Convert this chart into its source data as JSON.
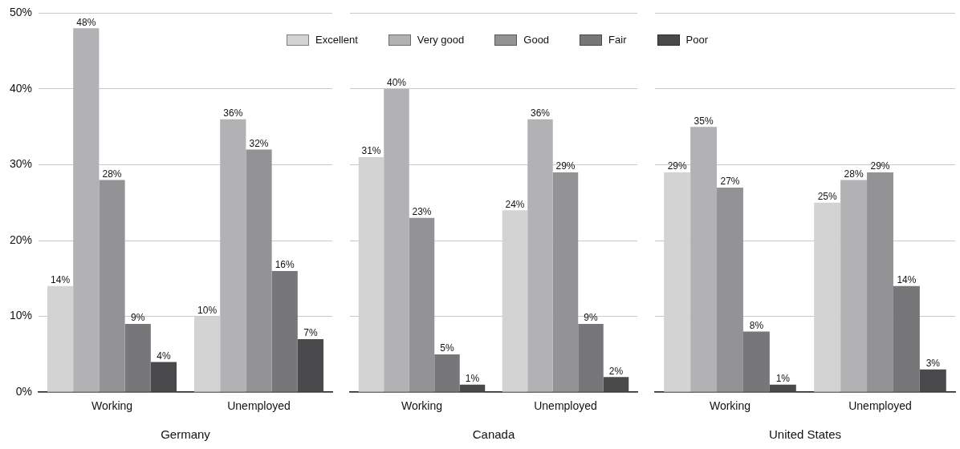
{
  "chart_data": [
    {
      "type": "bar",
      "xlabel": "Germany",
      "categories": [
        "Working",
        "Unemployed"
      ],
      "ylim": [
        0,
        50
      ],
      "yticks": [
        {
          "value": 0,
          "label": "0%"
        },
        {
          "value": 10,
          "label": "10%"
        },
        {
          "value": 20,
          "label": "20%"
        },
        {
          "value": 30,
          "label": "30%"
        },
        {
          "value": 40,
          "label": "40%"
        },
        {
          "value": 50,
          "label": "50%"
        }
      ],
      "grid": "y",
      "legend": "top right",
      "series": [
        {
          "name": "Excellent",
          "color": "#d3d3d4",
          "values": [
            14,
            10
          ],
          "value_labels": [
            "14%",
            "10%"
          ]
        },
        {
          "name": "Very good",
          "color": "#b2b2b4",
          "values": [
            48,
            36
          ],
          "value_labels": [
            "48%",
            "36%"
          ]
        },
        {
          "name": "Good",
          "color": "#939395",
          "values": [
            28,
            32
          ],
          "value_labels": [
            "28%",
            "32%"
          ]
        },
        {
          "name": "Fair",
          "color": "#77777a",
          "values": [
            9,
            16
          ],
          "value_labels": [
            "9%",
            "16%"
          ]
        },
        {
          "name": "Poor",
          "color": "#4a4a4c",
          "values": [
            4,
            7
          ],
          "value_labels": [
            "4%",
            "7%"
          ]
        }
      ]
    },
    {
      "type": "bar",
      "xlabel": "Canada",
      "categories": [
        "Working",
        "Unemployed"
      ],
      "ylim": [
        0,
        50
      ],
      "yticks": [
        0,
        10,
        20,
        30,
        40,
        50
      ],
      "grid": "y",
      "tick_labels": "x",
      "series": [
        {
          "color": "#d3d3d4",
          "values": [
            31,
            24
          ],
          "value_labels": [
            "31%",
            "24%"
          ]
        },
        {
          "color": "#b2b2b4",
          "values": [
            40,
            36
          ],
          "value_labels": [
            "40%",
            "36%"
          ]
        },
        {
          "color": "#939395",
          "values": [
            23,
            29
          ],
          "value_labels": [
            "23%",
            "29%"
          ]
        },
        {
          "color": "#77777a",
          "values": [
            5,
            9
          ],
          "value_labels": [
            "5%",
            "9%"
          ]
        },
        {
          "color": "#4a4a4c",
          "values": [
            1,
            2
          ],
          "value_labels": [
            "1%",
            "2%"
          ]
        }
      ]
    },
    {
      "type": "bar",
      "xlabel": "United States",
      "categories": [
        "Working",
        "Unemployed"
      ],
      "ylim": [
        0,
        50
      ],
      "yticks": [
        0,
        10,
        20,
        30,
        40,
        50
      ],
      "grid": "y",
      "tick_labels": "x",
      "series": [
        {
          "color": "#d3d3d4",
          "values": [
            29,
            25
          ],
          "value_labels": [
            "29%",
            "25%"
          ]
        },
        {
          "color": "#b2b2b4",
          "values": [
            35,
            28
          ],
          "value_labels": [
            "35%",
            "28%"
          ]
        },
        {
          "color": "#939395",
          "values": [
            27,
            29
          ],
          "value_labels": [
            "27%",
            "29%"
          ]
        },
        {
          "color": "#77777a",
          "values": [
            8,
            14
          ],
          "value_labels": [
            "8%",
            "14%"
          ]
        },
        {
          "color": "#4a4a4c",
          "values": [
            1,
            3
          ],
          "value_labels": [
            "1%",
            "3%"
          ]
        }
      ]
    }
  ]
}
